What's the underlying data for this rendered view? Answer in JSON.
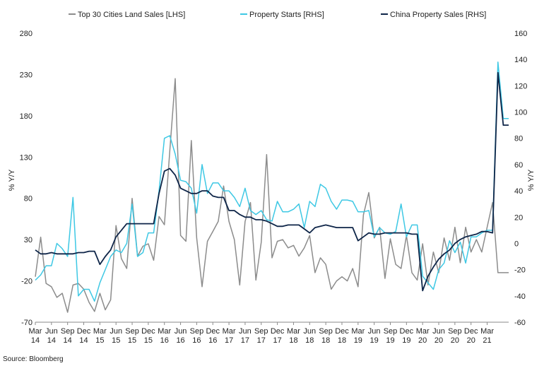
{
  "chart_data": {
    "type": "line",
    "source": "Source: Bloomberg",
    "y_left": {
      "label": "% Y/Y",
      "min": -70,
      "max": 280,
      "ticks": [
        -70,
        -20,
        30,
        80,
        130,
        180,
        230,
        280
      ]
    },
    "y_right": {
      "label": "% Y/Y",
      "min": -60,
      "max": 160,
      "ticks": [
        -60,
        -40,
        -20,
        0,
        20,
        40,
        60,
        80,
        100,
        120,
        140,
        160
      ]
    },
    "x_ticks": [
      {
        "m": "Mar",
        "y": "14",
        "i": 0
      },
      {
        "m": "Jun",
        "y": "14",
        "i": 3
      },
      {
        "m": "Sep",
        "y": "14",
        "i": 6
      },
      {
        "m": "Dec",
        "y": "14",
        "i": 9
      },
      {
        "m": "Mar",
        "y": "15",
        "i": 12
      },
      {
        "m": "Jun",
        "y": "15",
        "i": 15
      },
      {
        "m": "Sep",
        "y": "15",
        "i": 18
      },
      {
        "m": "Dec",
        "y": "15",
        "i": 21
      },
      {
        "m": "Mar",
        "y": "16",
        "i": 24
      },
      {
        "m": "Jun",
        "y": "16",
        "i": 27
      },
      {
        "m": "Sep",
        "y": "16",
        "i": 30
      },
      {
        "m": "Dec",
        "y": "16",
        "i": 33
      },
      {
        "m": "Mar",
        "y": "17",
        "i": 36
      },
      {
        "m": "Jun",
        "y": "17",
        "i": 39
      },
      {
        "m": "Sep",
        "y": "17",
        "i": 42
      },
      {
        "m": "Dec",
        "y": "17",
        "i": 45
      },
      {
        "m": "Mar",
        "y": "18",
        "i": 48
      },
      {
        "m": "Jun",
        "y": "18",
        "i": 51
      },
      {
        "m": "Sep",
        "y": "18",
        "i": 54
      },
      {
        "m": "Dec",
        "y": "18",
        "i": 57
      },
      {
        "m": "Mar",
        "y": "19",
        "i": 60
      },
      {
        "m": "Jun",
        "y": "19",
        "i": 63
      },
      {
        "m": "Sep",
        "y": "19",
        "i": 66
      },
      {
        "m": "Dec",
        "y": "19",
        "i": 69
      },
      {
        "m": "Mar",
        "y": "20",
        "i": 72
      },
      {
        "m": "Jun",
        "y": "20",
        "i": 75
      },
      {
        "m": "Sep",
        "y": "20",
        "i": 78
      },
      {
        "m": "Dec",
        "y": "20",
        "i": 81
      },
      {
        "m": "Mar",
        "y": "21",
        "i": 84
      }
    ],
    "series": [
      {
        "name": "Top 30 Cities Land Sales [LHS]",
        "axis": "left",
        "color": "#8c8c8c",
        "values": [
          -15,
          33,
          -23,
          -27,
          -40,
          -35,
          -58,
          -25,
          -23,
          -30,
          -46,
          -57,
          -35,
          -55,
          -43,
          47,
          7,
          -5,
          80,
          10,
          22,
          25,
          5,
          58,
          48,
          137,
          225,
          35,
          28,
          150,
          32,
          -27,
          28,
          40,
          52,
          95,
          52,
          30,
          -25,
          52,
          75,
          -19,
          27,
          133,
          8,
          28,
          30,
          20,
          23,
          10,
          20,
          35,
          -10,
          8,
          0,
          -30,
          -20,
          -15,
          -20,
          -5,
          -27,
          60,
          87,
          32,
          45,
          -17,
          31,
          0,
          -5,
          35,
          -10,
          -19,
          25,
          -25,
          15,
          -10,
          32,
          5,
          45,
          2,
          45,
          15,
          30,
          15,
          45,
          75,
          -10,
          -10,
          -10
        ]
      },
      {
        "name": "Property Starts [RHS]",
        "axis": "right",
        "color": "#3ec8e4",
        "values": [
          -28,
          -24,
          -17,
          -17,
          0,
          -4,
          -10,
          35,
          -40,
          -35,
          -35,
          -44,
          -30,
          -20,
          -10,
          -5,
          -7,
          0,
          30,
          -10,
          -7,
          8,
          8,
          40,
          80,
          82,
          68,
          48,
          47,
          42,
          23,
          60,
          38,
          46,
          46,
          40,
          40,
          35,
          28,
          42,
          25,
          22,
          25,
          18,
          17,
          32,
          24,
          24,
          26,
          30,
          12,
          32,
          28,
          45,
          42,
          32,
          26,
          33,
          33,
          32,
          24,
          24,
          25,
          5,
          12,
          8,
          7,
          9,
          30,
          5,
          14,
          14,
          -25,
          -30,
          -35,
          -20,
          -15,
          2,
          -7,
          1,
          -15,
          5,
          5,
          8,
          10,
          10,
          138,
          95,
          95
        ]
      },
      {
        "name": "China Property Sales [RHS]",
        "axis": "right",
        "color": "#0e2548",
        "values": [
          -5,
          -8,
          -8,
          -7,
          -8,
          -8,
          -8,
          -8,
          -7,
          -7,
          -6,
          -6,
          -16,
          -10,
          -5,
          5,
          10,
          15,
          15,
          15,
          15,
          15,
          15,
          38,
          55,
          57,
          52,
          42,
          40,
          38,
          38,
          40,
          40,
          36,
          35,
          35,
          25,
          25,
          22,
          20,
          20,
          18,
          18,
          17,
          15,
          13,
          13,
          14,
          14,
          14,
          11,
          8,
          12,
          13,
          14,
          13,
          12,
          12,
          12,
          12,
          2,
          5,
          8,
          7,
          7,
          8,
          8,
          8,
          8,
          8,
          7,
          7,
          -36,
          -25,
          -18,
          -12,
          -8,
          -5,
          0,
          3,
          5,
          6,
          7,
          9,
          9,
          8,
          130,
          90,
          90
        ]
      }
    ]
  }
}
